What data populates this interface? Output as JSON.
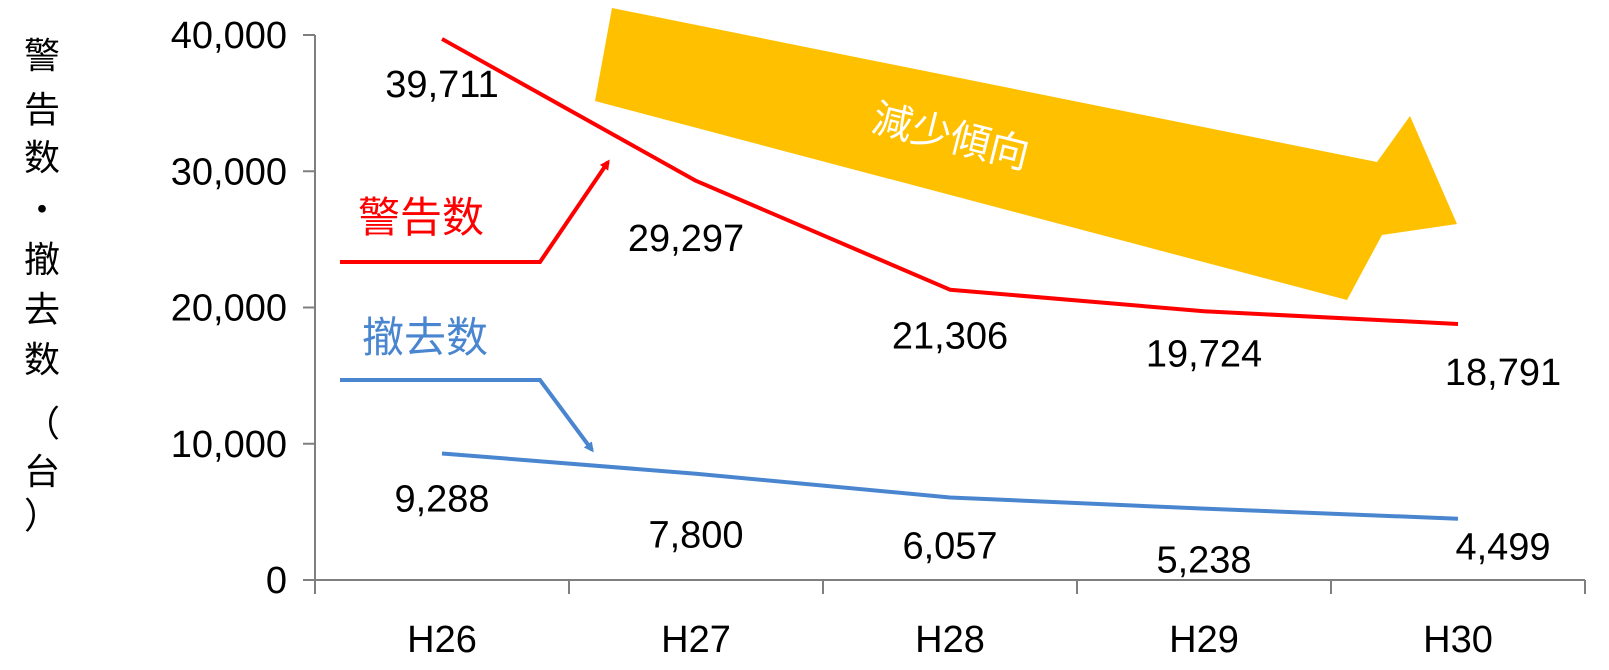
{
  "chart_data": {
    "type": "line",
    "title": "",
    "xlabel": "",
    "ylabel": "警告数・撤去数（台）",
    "categories": [
      "H26",
      "H27",
      "H28",
      "H29",
      "H30"
    ],
    "ylim": [
      0,
      40000
    ],
    "yticks": [
      0,
      10000,
      20000,
      30000,
      40000
    ],
    "ytick_labels": [
      "0",
      "10,000",
      "20,000",
      "30,000",
      "40,000"
    ],
    "grid": false,
    "legend": "none",
    "series": [
      {
        "name": "警告数",
        "values": [
          39711,
          29297,
          21306,
          19724,
          18791
        ],
        "labels": [
          "39,711",
          "29,297",
          "21,306",
          "19,724",
          "18,791"
        ],
        "color": "#ff0000"
      },
      {
        "name": "撤去数",
        "values": [
          9288,
          7800,
          6057,
          5238,
          4499
        ],
        "labels": [
          "9,288",
          "7,800",
          "6,057",
          "5,238",
          "4,499"
        ],
        "color": "#4a86d0"
      }
    ],
    "annotations": {
      "trend_text": "減少傾向",
      "trend_color": "#ffc000"
    }
  }
}
